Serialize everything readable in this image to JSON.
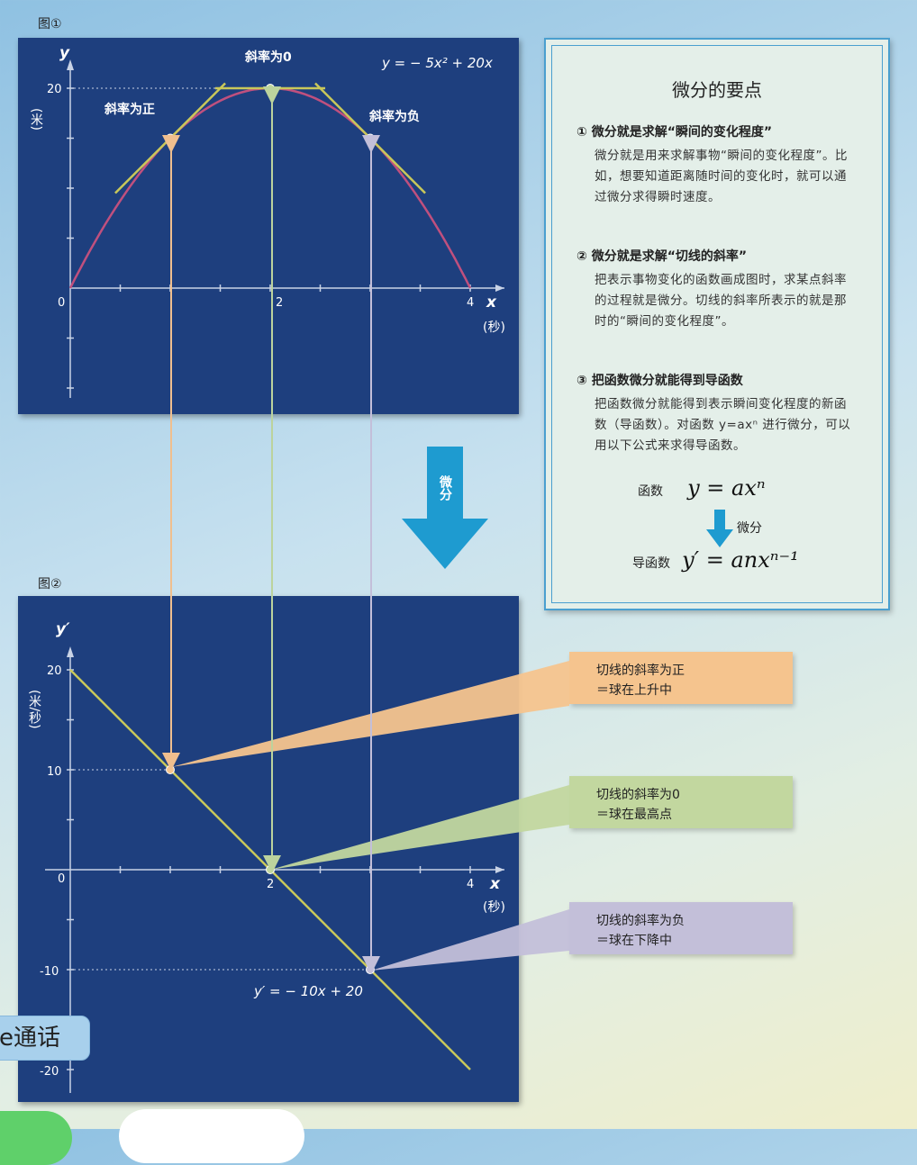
{
  "figure1": {
    "label": "图①",
    "y_axis": "y",
    "y_unit": "(米)",
    "x_axis": "x",
    "x_unit": "(秒)",
    "equation": "y = − 5x² + 20x",
    "slope_pos": "斜率为正",
    "slope_zero": "斜率为0",
    "slope_neg": "斜率为负",
    "tick_x": [
      "0",
      "2",
      "4"
    ],
    "tick_y": [
      "20"
    ]
  },
  "figure2": {
    "label": "图②",
    "y_axis": "y′",
    "y_unit": "(米/秒)",
    "x_axis": "x",
    "x_unit": "(秒)",
    "equation": "y′ = − 10x + 20",
    "tick_x": [
      "0",
      "2",
      "4"
    ],
    "tick_y": [
      "20",
      "10",
      "-10",
      "-20"
    ]
  },
  "chart_data": [
    {
      "type": "line",
      "series": [
        {
          "x": [
            0,
            1,
            2,
            3,
            4
          ],
          "y": [
            0,
            15,
            20,
            15,
            0
          ]
        }
      ],
      "xlabel": "x",
      "ylabel": "y",
      "xlim": [
        0,
        4
      ],
      "ylim": [
        0,
        20
      ]
    },
    {
      "type": "line",
      "series": [
        {
          "x": [
            0,
            1,
            2,
            3,
            4
          ],
          "y": [
            20,
            10,
            0,
            -10,
            -20
          ]
        }
      ],
      "xlabel": "x",
      "ylabel": "y′",
      "xlim": [
        0,
        4
      ],
      "ylim": [
        -20,
        20
      ]
    }
  ],
  "arrow_label": "微分",
  "notes": {
    "title": "微分的要点",
    "p1_title": "① 微分就是求解“瞬间的变化程度”",
    "p1_body": "微分就是用来求解事物“瞬间的变化程度”。比如，想要知道距离随时间的变化时，就可以通过微分求得瞬时速度。",
    "p2_title": "② 微分就是求解“切线的斜率”",
    "p2_body": "把表示事物变化的函数画成图时，求某点斜率的过程就是微分。切线的斜率所表示的就是那时的“瞬间的变化程度”。",
    "p3_title": "③ 把函数微分就能得到导函数",
    "p3_body": "把函数微分就能得到表示瞬间变化程度的新函数（导函数）。对函数 y=axⁿ 进行微分，可以用以下公式来求得导函数。",
    "func_label": "函数",
    "func_eq": "y = axⁿ",
    "diff_label": "微分",
    "deriv_label": "导函数",
    "deriv_eq": "y′ = anxⁿ⁻¹"
  },
  "callouts": {
    "pos_line1": "切线的斜率为正",
    "pos_line2": "＝球在上升中",
    "zero_line1": "切线的斜率为0",
    "zero_line2": "＝球在最高点",
    "neg_line1": "切线的斜率为负",
    "neg_line2": "＝球在下降中"
  },
  "chip_text": "e通话",
  "colors": {
    "panel": "#1e3f7e",
    "curve": "#c0507e",
    "tangent": "#c9c85a",
    "pos": "#f5c48e",
    "zero": "#c2d79f",
    "neg": "#c3bfd9",
    "accent": "#1e9bd0"
  }
}
